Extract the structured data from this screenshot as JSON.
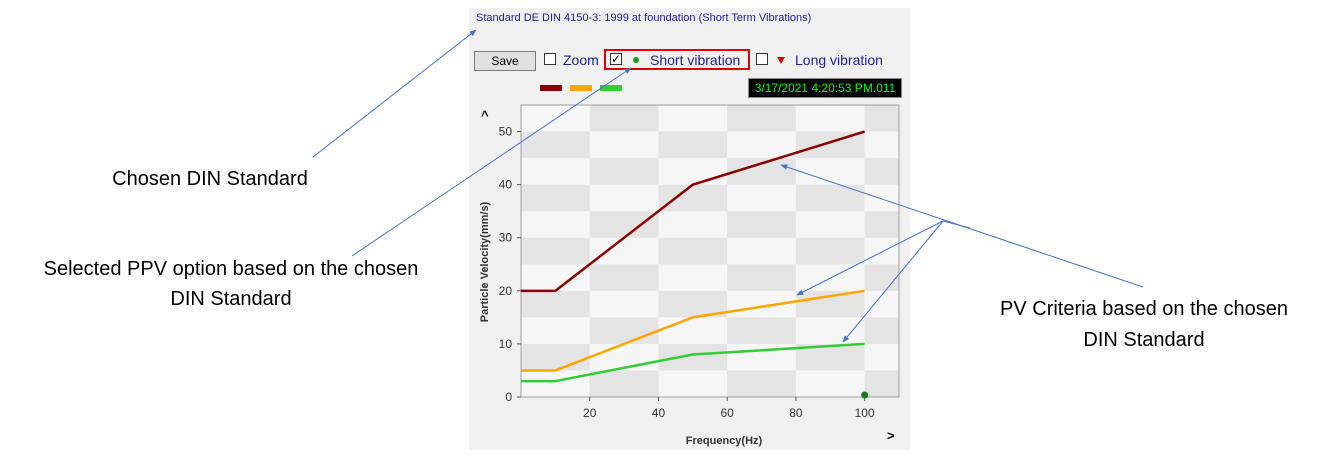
{
  "header": {
    "title": "Standard DE DIN 4150-3: 1999 at foundation (Short Term Vibrations)"
  },
  "toolbar": {
    "save_label": "Save",
    "zoom_label": "Zoom",
    "zoom_checked": false,
    "short_label": "Short vibration",
    "short_checked": true,
    "long_label": "Long vibration",
    "long_checked": false,
    "short_marker_color": "#1a9a1a",
    "long_marker_color": "#e00000"
  },
  "legend": {
    "colors": [
      "#8b0000",
      "#ffa500",
      "#32cd32"
    ]
  },
  "timestamp": "3/17/2021 4:20:53 PM.011",
  "annotations": {
    "chosen_din": "Chosen DIN Standard",
    "selected_ppv_line1": "Selected PPV option based on the chosen",
    "selected_ppv_line2": "DIN Standard",
    "pv_criteria_line1": "PV Criteria based on the chosen",
    "pv_criteria_line2": "DIN Standard"
  },
  "chart_data": {
    "type": "line",
    "title": "",
    "xlabel": "Frequency(Hz)",
    "ylabel": "Particle Velocity(mm/s)",
    "xlim": [
      0,
      110
    ],
    "ylim": [
      0,
      55
    ],
    "xticks": [
      20,
      40,
      60,
      80,
      100
    ],
    "yticks": [
      0,
      10,
      20,
      30,
      40,
      50
    ],
    "x_arrow": ">",
    "y_arrow": "^",
    "grid": "checkerboard",
    "series": [
      {
        "color": "#8b0000",
        "x": [
          0,
          10,
          50,
          100
        ],
        "y": [
          20,
          20,
          40,
          50
        ]
      },
      {
        "color": "#ffa500",
        "x": [
          0,
          10,
          50,
          100
        ],
        "y": [
          5,
          5,
          15,
          20
        ]
      },
      {
        "color": "#32cd32",
        "x": [
          0,
          10,
          50,
          100
        ],
        "y": [
          3,
          3,
          8,
          10
        ]
      }
    ],
    "points": [
      {
        "x": 100,
        "y": 0,
        "color": "#1a7a1a"
      }
    ]
  }
}
